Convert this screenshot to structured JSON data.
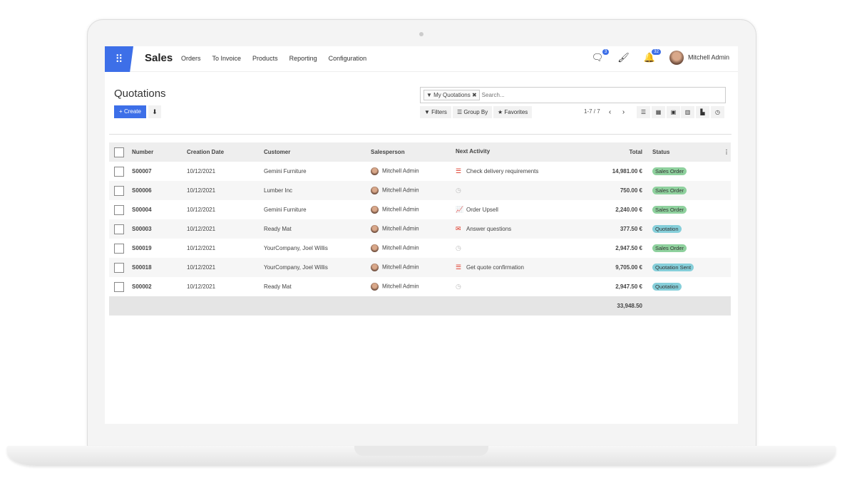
{
  "nav": {
    "brand": "Sales",
    "menu": [
      "Orders",
      "To Invoice",
      "Products",
      "Reporting",
      "Configuration"
    ],
    "messages_count": "3",
    "activities_count": "32",
    "user": "Mitchell Admin"
  },
  "page": {
    "title": "Quotations",
    "create_label": "+ Create"
  },
  "search": {
    "facet": "My Quotations",
    "placeholder": "Search..."
  },
  "filters": {
    "filters": "Filters",
    "group_by": "Group By",
    "favorites": "Favorites",
    "pager": "1-7 / 7"
  },
  "table": {
    "headers": {
      "number": "Number",
      "date": "Creation Date",
      "customer": "Customer",
      "salesperson": "Salesperson",
      "activity": "Next Activity",
      "total": "Total",
      "status": "Status"
    },
    "rows": [
      {
        "number": "S00007",
        "date": "10/12/2021",
        "customer": "Gemini Furniture",
        "salesperson": "Mitchell Admin",
        "activity": "Check delivery requirements",
        "activity_icon": "delivery-icon",
        "total": "14,981.00 €",
        "status": "Sales Order"
      },
      {
        "number": "S00006",
        "date": "10/12/2021",
        "customer": "Lumber Inc",
        "salesperson": "Mitchell Admin",
        "activity": "",
        "activity_icon": "clock-icon",
        "total": "750.00 €",
        "status": "Sales Order"
      },
      {
        "number": "S00004",
        "date": "10/12/2021",
        "customer": "Gemini Furniture",
        "salesperson": "Mitchell Admin",
        "activity": "Order Upsell",
        "activity_icon": "chart-line-icon",
        "total": "2,240.00 €",
        "status": "Sales Order"
      },
      {
        "number": "S00003",
        "date": "10/12/2021",
        "customer": "Ready Mat",
        "salesperson": "Mitchell Admin",
        "activity": "Answer questions",
        "activity_icon": "envelope-icon",
        "total": "377.50 €",
        "status": "Quotation"
      },
      {
        "number": "S00019",
        "date": "10/12/2021",
        "customer": "YourCompany, Joel Willis",
        "salesperson": "Mitchell Admin",
        "activity": "",
        "activity_icon": "clock-icon",
        "total": "2,947.50 €",
        "status": "Sales Order"
      },
      {
        "number": "S00018",
        "date": "10/12/2021",
        "customer": "YourCompany, Joel Willis",
        "salesperson": "Mitchell Admin",
        "activity": "Get quote confirmation",
        "activity_icon": "delivery-icon",
        "total": "9,705.00 €",
        "status": "Quotation Sent"
      },
      {
        "number": "S00002",
        "date": "10/12/2021",
        "customer": "Ready Mat",
        "salesperson": "Mitchell Admin",
        "activity": "",
        "activity_icon": "clock-icon",
        "total": "2,947.50 €",
        "status": "Quotation"
      }
    ],
    "sum": "33,948.50"
  },
  "colors": {
    "accent": "#3d6fe8",
    "sales_order": "#8fd19e",
    "quotation": "#86cfda",
    "activity": "#d32f2f"
  }
}
